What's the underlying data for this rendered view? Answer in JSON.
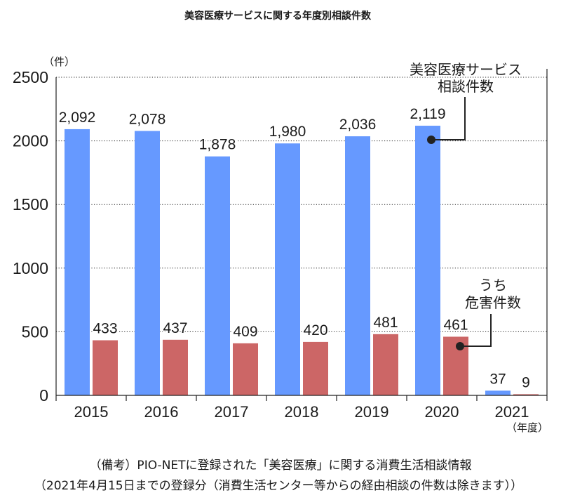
{
  "chart_data": {
    "type": "bar",
    "title": "美容医療サービスに関する年度別相談件数",
    "ylabel": "（件）",
    "xlabel": "（年度）",
    "categories": [
      "2015",
      "2016",
      "2017",
      "2018",
      "2019",
      "2020",
      "2021"
    ],
    "ylim": [
      0,
      2500
    ],
    "yticks": [
      0,
      500,
      1000,
      1500,
      2000,
      2500
    ],
    "grid": true,
    "legend": "callout",
    "series": [
      {
        "label_lines": [
          "美容医療サービス",
          "相談件数"
        ],
        "color": "#6699ff",
        "values": [
          2092,
          2078,
          1878,
          1980,
          2036,
          2119,
          37
        ],
        "data_labels": [
          "2,092",
          "2,078",
          "1,878",
          "1,980",
          "2,036",
          "2,119",
          "37"
        ]
      },
      {
        "label_lines": [
          "うち",
          "危害件数"
        ],
        "color": "#cc6666",
        "values": [
          433,
          437,
          409,
          420,
          481,
          461,
          9
        ],
        "data_labels": [
          "433",
          "437",
          "409",
          "420",
          "481",
          "461",
          "9"
        ]
      }
    ]
  },
  "notes": [
    "（備考）PIO-NETに登録された「美容医療」に関する消費生活相談情報",
    "（2021年4月15日までの登録分（消費生活センター等からの経由相談の件数は除きます））"
  ]
}
